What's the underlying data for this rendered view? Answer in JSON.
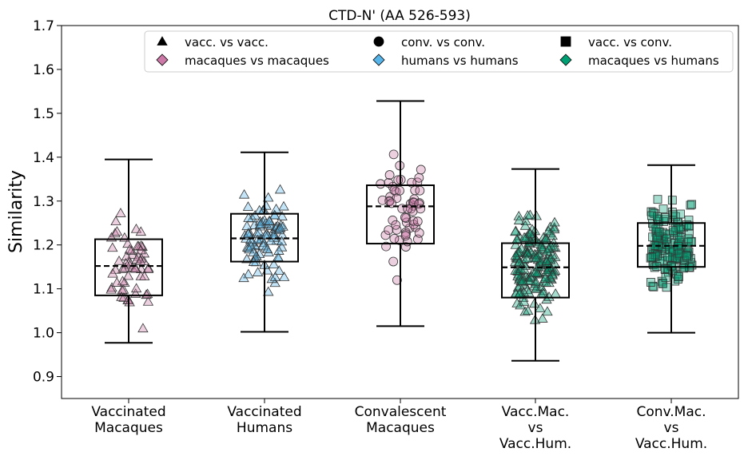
{
  "chart_data": {
    "type": "box",
    "title": "CTD-N' (AA 526-593)",
    "ylabel": "Similarity",
    "xlabel": "",
    "ylim": [
      0.85,
      1.7
    ],
    "yticks": [
      "0.9",
      "1.0",
      "1.1",
      "1.2",
      "1.3",
      "1.4",
      "1.5",
      "1.6",
      "1.7"
    ],
    "grid": false,
    "legend_position": "top",
    "categories": [
      [
        "Vaccinated",
        "Macaques"
      ],
      [
        "Vaccinated",
        "Humans"
      ],
      [
        "Convalescent",
        "Macaques"
      ],
      [
        "Vacc.Mac.",
        "vs",
        "Vacc.Hum."
      ],
      [
        "Conv.Mac.",
        "vs",
        "Vacc.Hum."
      ]
    ],
    "legend": [
      {
        "label": "vacc. vs vacc.",
        "marker": "triangle",
        "color": "#000000"
      },
      {
        "label": "conv. vs conv.",
        "marker": "circle",
        "color": "#000000"
      },
      {
        "label": "vacc. vs conv.",
        "marker": "square",
        "color": "#000000"
      },
      {
        "label": "macaques vs macaques",
        "marker": "diamond",
        "color": "#cc79a7"
      },
      {
        "label": "humans vs humans",
        "marker": "diamond",
        "color": "#56b4e9"
      },
      {
        "label": "macaques vs humans",
        "marker": "diamond",
        "color": "#009e73"
      }
    ],
    "series": [
      {
        "category": 0,
        "marker": "triangle",
        "color": "#cc79a7",
        "n": 60,
        "whisker_low": 0.977,
        "q1": 1.085,
        "median": 1.152,
        "q3": 1.213,
        "whisker_high": 1.395,
        "range": [
          0.975,
          1.467
        ]
      },
      {
        "category": 1,
        "marker": "triangle",
        "color": "#56b4e9",
        "n": 95,
        "whisker_low": 1.002,
        "q1": 1.162,
        "median": 1.215,
        "q3": 1.271,
        "whisker_high": 1.411,
        "range": [
          0.97,
          1.41
        ]
      },
      {
        "category": 2,
        "marker": "circle",
        "color": "#cc79a7",
        "n": 60,
        "whisker_low": 1.015,
        "q1": 1.203,
        "median": 1.288,
        "q3": 1.336,
        "whisker_high": 1.528,
        "range": [
          1.015,
          1.54
        ]
      },
      {
        "category": 3,
        "marker": "triangle",
        "color": "#009e73",
        "n": 180,
        "whisker_low": 0.936,
        "q1": 1.08,
        "median": 1.149,
        "q3": 1.204,
        "whisker_high": 1.373,
        "range": [
          0.935,
          1.373
        ]
      },
      {
        "category": 4,
        "marker": "square",
        "color": "#009e73",
        "n": 170,
        "whisker_low": 1.0,
        "q1": 1.15,
        "median": 1.198,
        "q3": 1.25,
        "whisker_high": 1.382,
        "range": [
          0.975,
          1.382
        ]
      }
    ]
  }
}
